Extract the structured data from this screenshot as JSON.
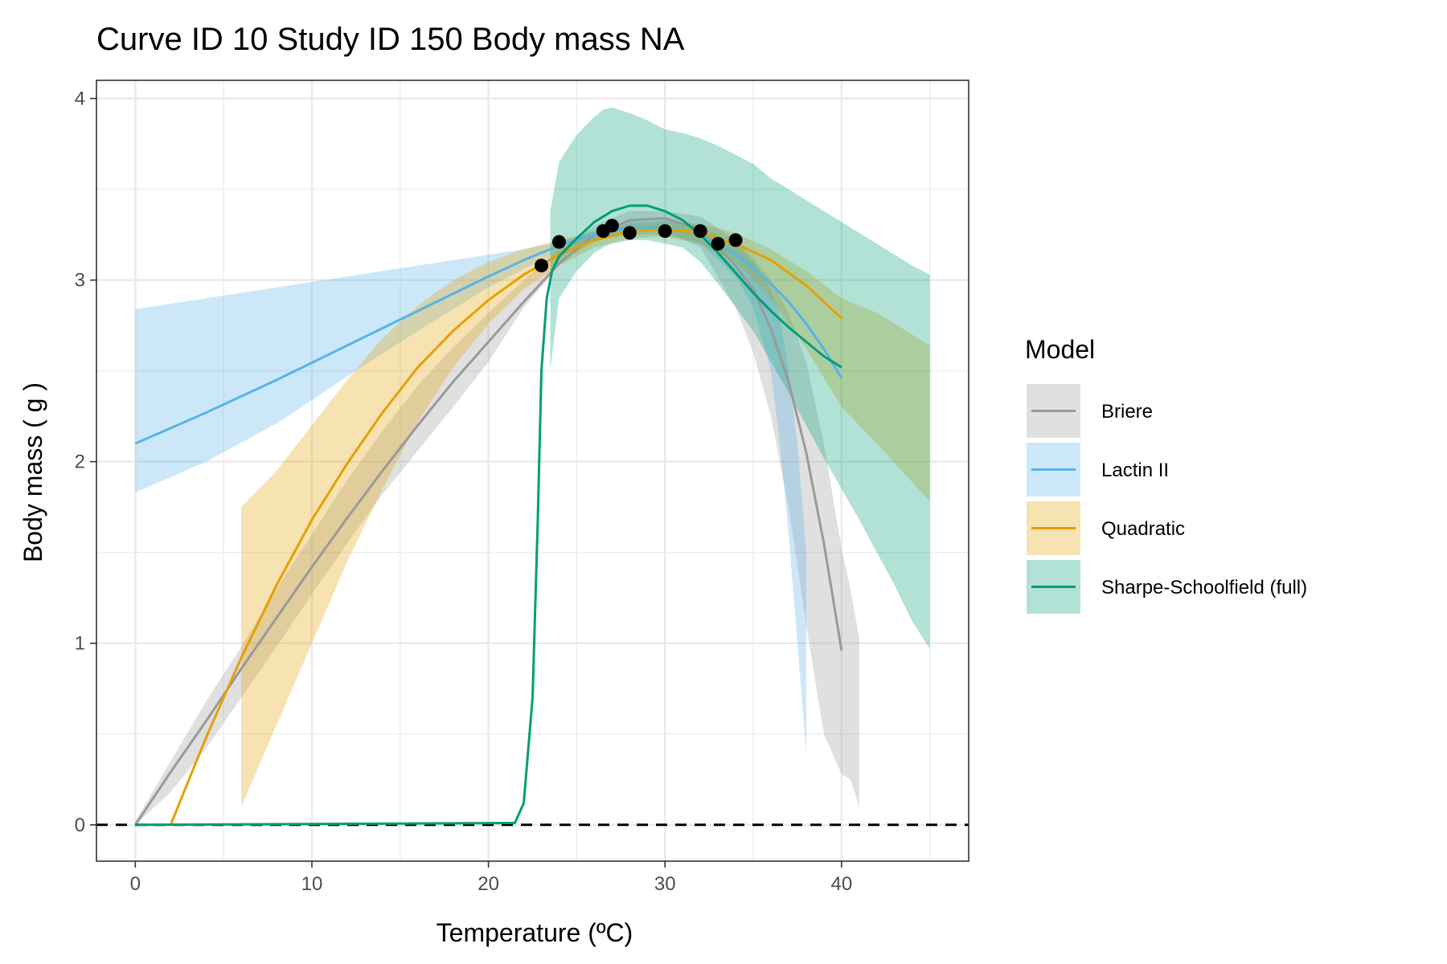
{
  "chart_data": {
    "type": "line",
    "title": "Curve ID 10 Study ID 150 Body mass NA",
    "xlabel": "Temperature (ºC)",
    "ylabel": "Body mass ( g )",
    "xlim": [
      -2.2,
      47.2
    ],
    "ylim": [
      -0.2,
      4.1
    ],
    "x_ticks": [
      0,
      10,
      20,
      30,
      40
    ],
    "y_ticks": [
      0,
      1,
      2,
      3,
      4
    ],
    "grid": true,
    "reference_line": {
      "y": 0,
      "style": "dashed"
    },
    "legend": {
      "title": "Model",
      "position": "right"
    },
    "points": {
      "color": "#000000",
      "x": [
        23,
        24,
        26.5,
        27,
        28,
        30,
        32,
        33,
        34
      ],
      "y": [
        3.08,
        3.21,
        3.27,
        3.3,
        3.26,
        3.27,
        3.27,
        3.2,
        3.22
      ]
    },
    "series": [
      {
        "name": "Briere",
        "color": "#999999",
        "x": [
          0,
          2,
          4,
          6,
          8,
          10,
          12,
          14,
          16,
          18,
          20,
          22,
          24,
          26,
          28,
          30,
          32,
          34,
          35,
          36,
          37,
          38,
          39,
          40
        ],
        "y": [
          0,
          0.29,
          0.57,
          0.86,
          1.14,
          1.42,
          1.69,
          1.95,
          2.2,
          2.44,
          2.66,
          2.88,
          3.09,
          3.25,
          3.33,
          3.34,
          3.28,
          3.08,
          2.95,
          2.73,
          2.44,
          2.05,
          1.55,
          0.96
        ],
        "band_x": [
          0,
          2,
          4,
          6,
          8,
          10,
          12,
          14,
          16,
          18,
          20,
          22,
          23.5,
          24,
          26,
          28,
          30,
          32,
          34,
          35,
          36,
          37,
          38,
          39,
          40,
          40.5,
          41
        ],
        "band_lower": [
          0,
          0.18,
          0.42,
          0.7,
          0.98,
          1.27,
          1.55,
          1.82,
          2.06,
          2.3,
          2.55,
          2.85,
          3.02,
          3.1,
          3.21,
          3.27,
          3.27,
          3.18,
          2.85,
          2.6,
          2.25,
          1.75,
          1.1,
          0.5,
          0.28,
          0.25,
          0.1
        ],
        "band_upper": [
          0.02,
          0.35,
          0.68,
          0.98,
          1.3,
          1.6,
          1.9,
          2.17,
          2.42,
          2.63,
          2.82,
          3.0,
          3.13,
          3.16,
          3.3,
          3.38,
          3.38,
          3.35,
          3.22,
          3.12,
          3.0,
          2.82,
          2.55,
          2.1,
          1.52,
          1.3,
          1.03
        ]
      },
      {
        "name": "Lactin II",
        "color": "#56B4E9",
        "x": [
          0,
          4,
          8,
          12,
          16,
          20,
          22,
          24,
          26,
          28,
          30,
          32,
          34,
          35,
          36,
          37,
          38,
          39,
          40
        ],
        "y": [
          2.1,
          2.27,
          2.45,
          2.64,
          2.83,
          3.02,
          3.11,
          3.19,
          3.25,
          3.29,
          3.29,
          3.25,
          3.14,
          3.07,
          2.98,
          2.88,
          2.76,
          2.62,
          2.46
        ],
        "band_x": [
          0,
          4,
          8,
          12,
          16,
          20,
          22,
          24,
          26,
          28,
          30,
          32,
          34,
          35,
          36,
          36.5,
          37,
          37.5,
          38
        ],
        "band_lower": [
          1.83,
          2.0,
          2.21,
          2.47,
          2.72,
          2.96,
          3.06,
          3.15,
          3.22,
          3.25,
          3.25,
          3.2,
          3.02,
          2.85,
          2.5,
          2.1,
          1.6,
          1.0,
          0.4
        ],
        "band_upper": [
          2.84,
          2.9,
          2.96,
          3.02,
          3.08,
          3.14,
          3.17,
          3.21,
          3.27,
          3.32,
          3.33,
          3.3,
          3.2,
          3.1,
          2.95,
          2.8,
          2.5,
          2.1,
          1.5
        ]
      },
      {
        "name": "Quadratic",
        "color": "#E69F00",
        "x": [
          2,
          4,
          6,
          8,
          10,
          12,
          14,
          16,
          18,
          20,
          22,
          24,
          26,
          28,
          30,
          32,
          34,
          36,
          38,
          40
        ],
        "y": [
          0,
          0.48,
          0.92,
          1.32,
          1.68,
          1.99,
          2.27,
          2.52,
          2.72,
          2.89,
          3.03,
          3.14,
          3.22,
          3.27,
          3.28,
          3.26,
          3.2,
          3.11,
          2.97,
          2.79
        ],
        "band_x": [
          6,
          8,
          10,
          12,
          14,
          16,
          18,
          20,
          22,
          24,
          26,
          28,
          30,
          32,
          34,
          36,
          38,
          40,
          42,
          45
        ],
        "band_lower": [
          0.1,
          0.55,
          1.0,
          1.45,
          1.85,
          2.22,
          2.52,
          2.76,
          2.95,
          3.08,
          3.18,
          3.23,
          3.24,
          3.2,
          3.1,
          2.9,
          2.62,
          2.3,
          2.1,
          1.78
        ],
        "band_upper": [
          1.75,
          1.95,
          2.2,
          2.45,
          2.68,
          2.86,
          3.0,
          3.1,
          3.17,
          3.22,
          3.27,
          3.31,
          3.32,
          3.31,
          3.26,
          3.17,
          3.05,
          2.9,
          2.82,
          2.64
        ]
      },
      {
        "name": "Sharpe-Schoolfield (full)",
        "color": "#009E73",
        "x": [
          0,
          21.5,
          22,
          22.5,
          22.8,
          23,
          23.3,
          23.6,
          24,
          25,
          26,
          27,
          28,
          29,
          30,
          31,
          32,
          33,
          34,
          35,
          36,
          37,
          38,
          39,
          40
        ],
        "y": [
          0,
          0.01,
          0.12,
          0.7,
          1.7,
          2.5,
          2.9,
          3.05,
          3.13,
          3.23,
          3.32,
          3.38,
          3.41,
          3.41,
          3.38,
          3.33,
          3.25,
          3.15,
          3.04,
          2.93,
          2.83,
          2.74,
          2.66,
          2.58,
          2.52
        ],
        "band_x": [
          23.5,
          24,
          25,
          26,
          26.5,
          27,
          28,
          29,
          30,
          31,
          32,
          33,
          34,
          35,
          36,
          37,
          38,
          39,
          40,
          41,
          42,
          43,
          44,
          45
        ],
        "band_lower": [
          2.5,
          2.9,
          3.05,
          3.15,
          3.18,
          3.2,
          3.22,
          3.22,
          3.2,
          3.18,
          3.1,
          2.98,
          2.85,
          2.72,
          2.55,
          2.38,
          2.2,
          2.02,
          1.85,
          1.68,
          1.5,
          1.32,
          1.12,
          0.97
        ],
        "band_upper": [
          3.38,
          3.65,
          3.8,
          3.9,
          3.94,
          3.95,
          3.92,
          3.88,
          3.83,
          3.81,
          3.78,
          3.74,
          3.69,
          3.64,
          3.56,
          3.5,
          3.44,
          3.38,
          3.32,
          3.26,
          3.2,
          3.14,
          3.08,
          3.03
        ]
      }
    ]
  }
}
